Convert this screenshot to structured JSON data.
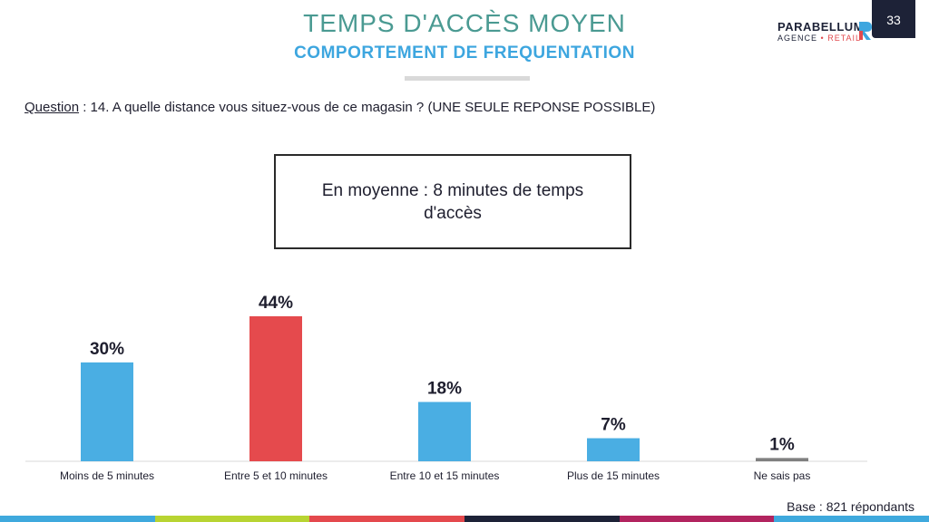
{
  "header": {
    "title": "TEMPS D'ACCÈS MOYEN",
    "subtitle": "COMPORTEMENT DE FREQUENTATION",
    "page_number": "33"
  },
  "logo": {
    "name": "PARABELLUM",
    "sub_left": "AGENCE",
    "sub_dot": "•",
    "sub_right": "RETAIL"
  },
  "question": {
    "label": "Question",
    "text": " : 14. A quelle distance vous situez-vous de ce magasin ? (UNE SEULE REPONSE POSSIBLE)"
  },
  "average_box": {
    "text": "En moyenne : 8 minutes de temps d'accès"
  },
  "chart_data": {
    "type": "bar",
    "categories": [
      "Moins de 5 minutes",
      "Entre 5 et 10 minutes",
      "Entre 10 et 15 minutes",
      "Plus de 15 minutes",
      "Ne sais pas"
    ],
    "values": [
      30,
      44,
      18,
      7,
      1
    ],
    "value_labels": [
      "30%",
      "44%",
      "18%",
      "7%",
      "1%"
    ],
    "colors": [
      "#4aaee3",
      "#e54a4d",
      "#4aaee3",
      "#4aaee3",
      "#808080"
    ],
    "ylim": [
      0,
      44
    ],
    "title": "",
    "xlabel": "",
    "ylabel": ""
  },
  "base_note": "Base : 821 répondants",
  "footer_colors": [
    "#3fa9dd",
    "#b8d432",
    "#e4494d",
    "#1d2237",
    "#b2245f",
    "#3fa9dd"
  ],
  "brand_colors": {
    "title": "#4a9a92",
    "subtitle": "#3da6df",
    "navy": "#1d2237",
    "red": "#e24a4e"
  }
}
